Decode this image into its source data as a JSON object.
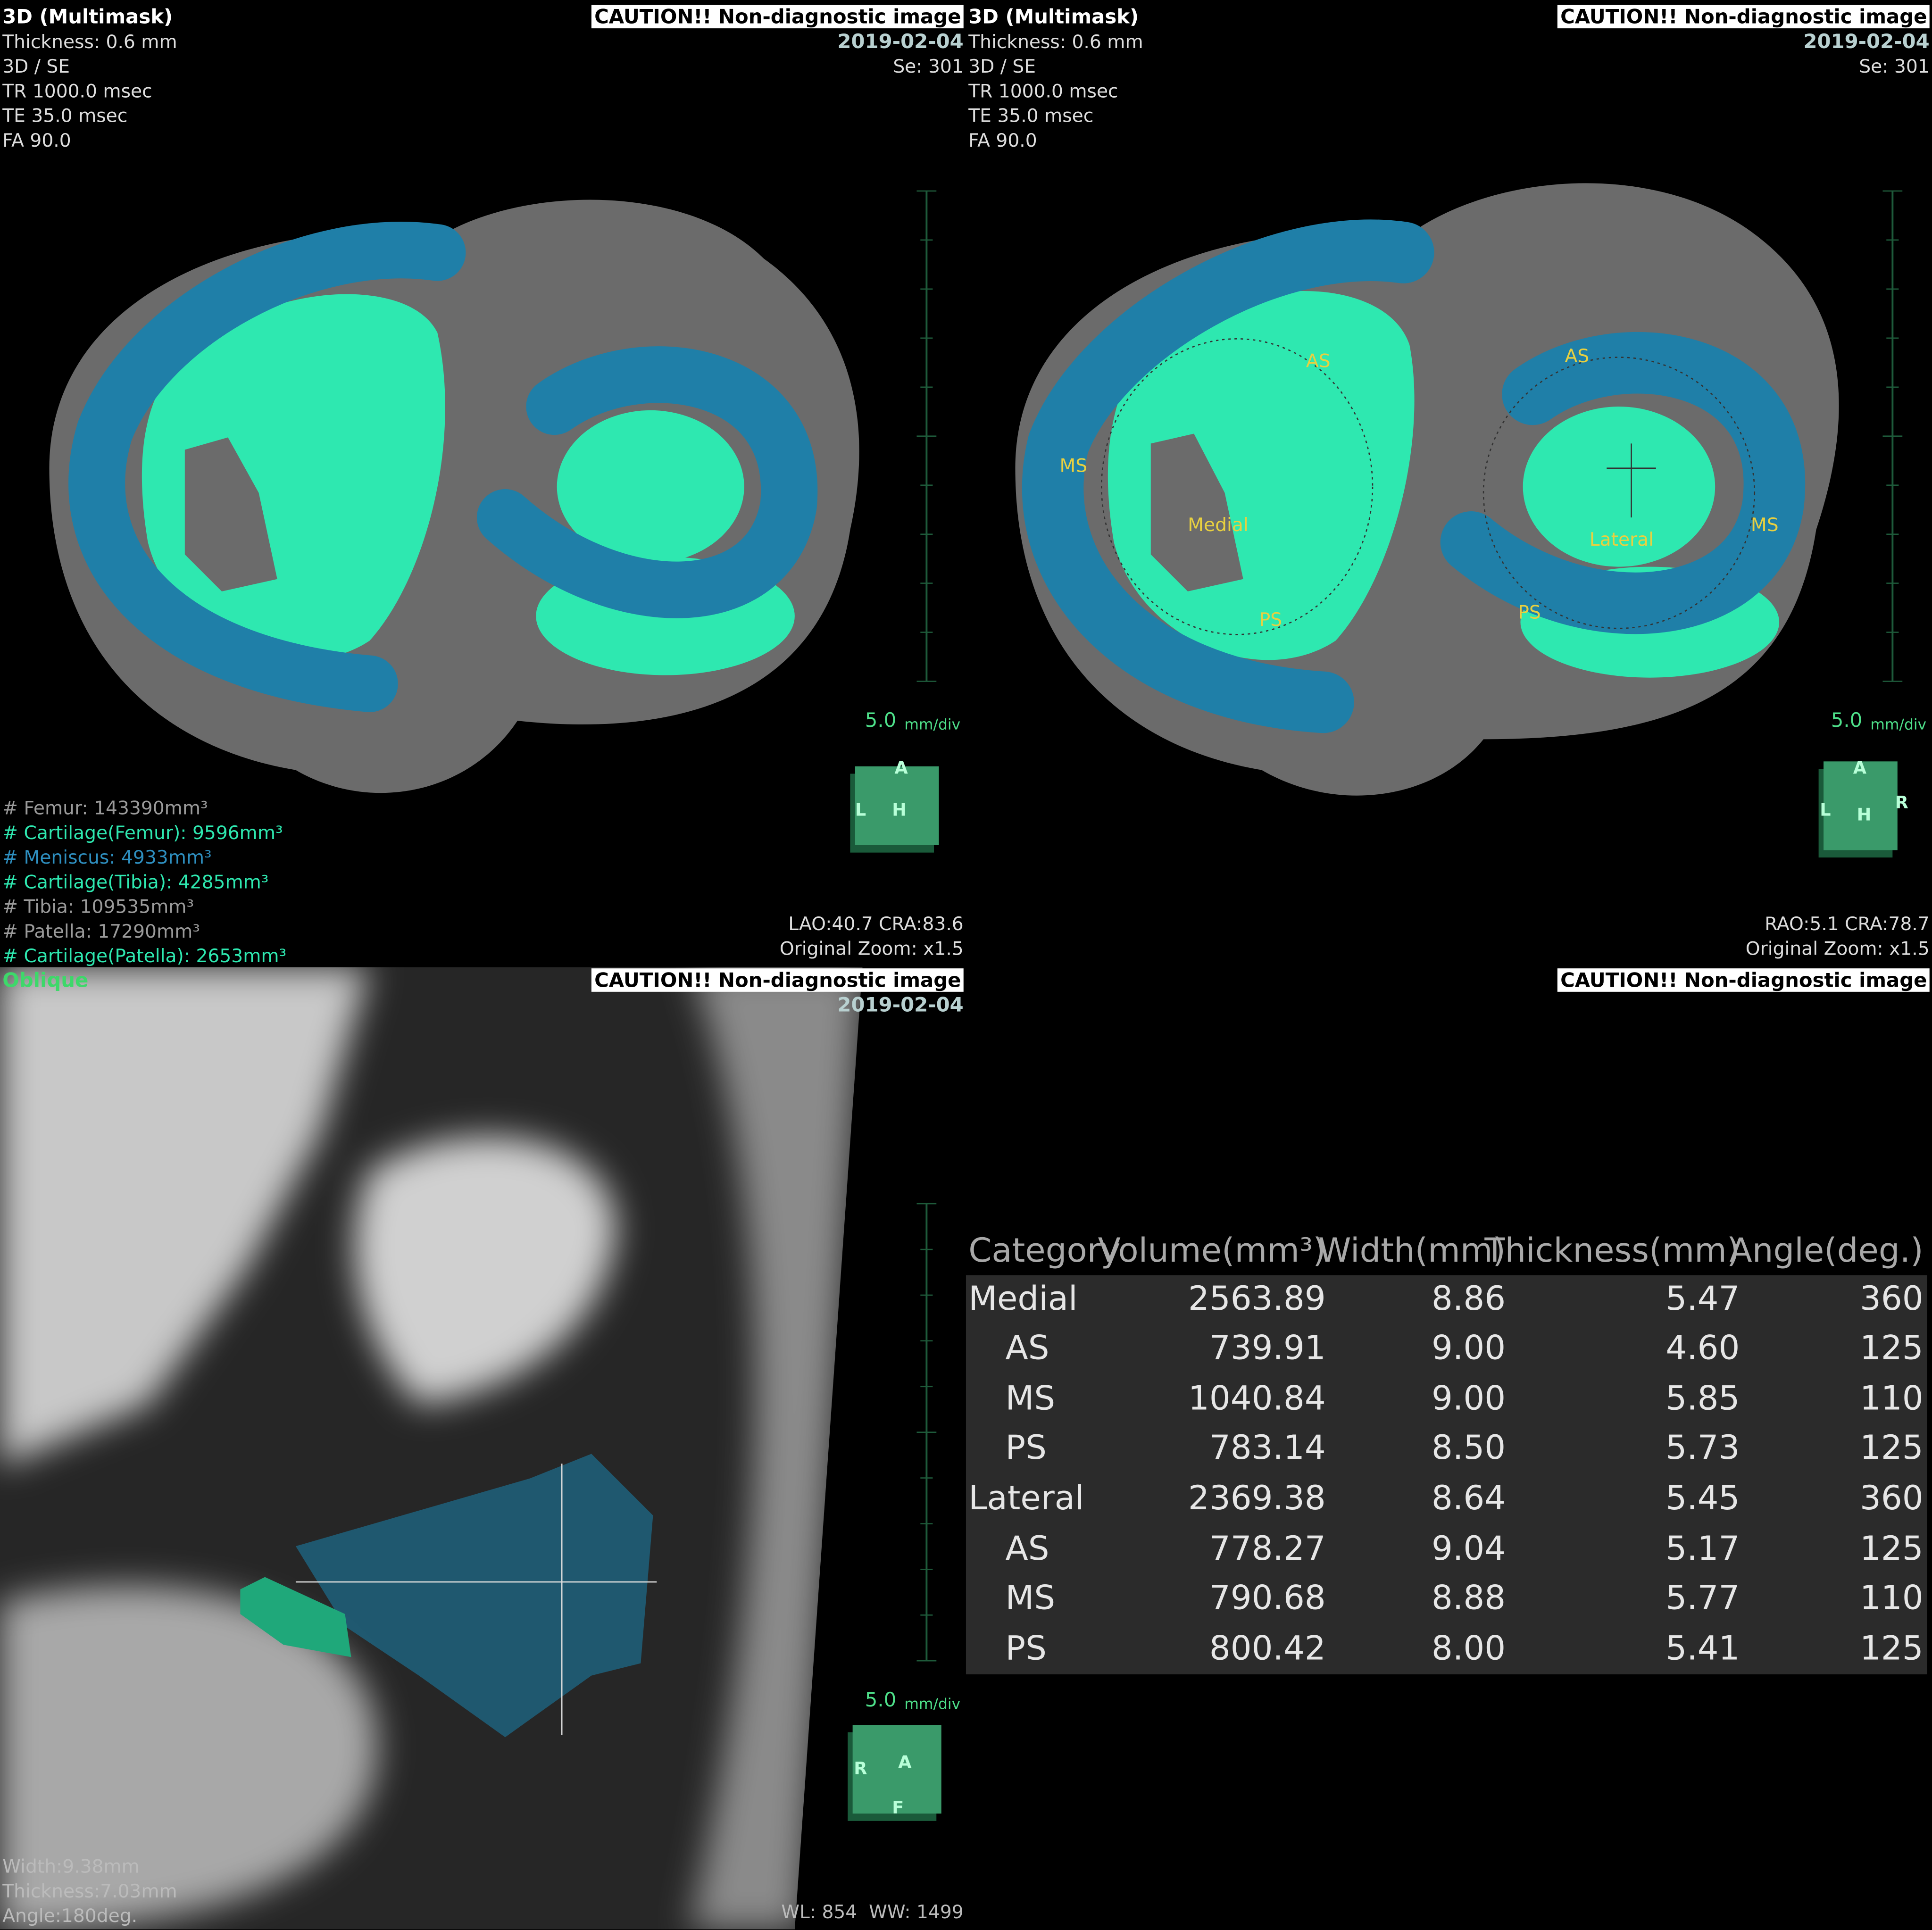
{
  "viewports": [
    {
      "title": "3D (Multimask)",
      "info": [
        "Thickness: 0.6 mm",
        "3D / SE",
        "TR 1000.0 msec",
        "TE 35.0 msec",
        "FA 90.0"
      ],
      "caution": "CAUTION!! Non-diagnostic image",
      "date": "2019-02-04",
      "series": "Se: 301",
      "scale_value": "5.0",
      "scale_unit": "mm/div",
      "orientation": [
        "A",
        "L",
        "H"
      ],
      "view": "LAO:40.7 CRA:83.6",
      "zoom": "Original Zoom: x1.5",
      "legend": [
        "# Femur: 143390mm³",
        "# Cartilage(Femur): 9596mm³",
        "# Meniscus: 4933mm³",
        "# Cartilage(Tibia): 4285mm³",
        "# Tibia: 109535mm³",
        "# Patella: 17290mm³",
        "# Cartilage(Patella): 2653mm³"
      ]
    },
    {
      "title": "3D (Multimask)",
      "info": [
        "Thickness: 0.6 mm",
        "3D / SE",
        "TR 1000.0 msec",
        "TE 35.0 msec",
        "FA 90.0"
      ],
      "caution": "CAUTION!! Non-diagnostic image",
      "date": "2019-02-04",
      "series": "Se: 301",
      "scale_value": "5.0",
      "scale_unit": "mm/div",
      "orientation": [
        "A",
        "L",
        "H",
        "R"
      ],
      "view": "RAO:5.1 CRA:78.7",
      "zoom": "Original Zoom: x1.5",
      "labels": [
        "AS",
        "MS",
        "Medial",
        "PS",
        "AS",
        "Lateral",
        "MS",
        "PS"
      ]
    },
    {
      "title": "Oblique",
      "caution": "CAUTION!! Non-diagnostic image",
      "date": "2019-02-04",
      "scale_value": "5.0",
      "scale_unit": "mm/div",
      "orientation": [
        "R",
        "A",
        "F"
      ],
      "measurements": [
        "Width:9.38mm",
        "Thickness:7.03mm",
        "Angle:180deg."
      ],
      "window": "WL: 854  WW: 1499"
    }
  ],
  "results": {
    "caution": "CAUTION!! Non-diagnostic image",
    "table": {
      "header": [
        "Category",
        "Volume(mm³)",
        "Width(mm)",
        "Thickness(mm)",
        "Angle(deg.)"
      ],
      "rows": [
        [
          "Medial",
          "2563.89",
          "8.86",
          "5.47",
          "360"
        ],
        [
          "AS",
          "739.91",
          "9.00",
          "4.60",
          "125"
        ],
        [
          "MS",
          "1040.84",
          "9.00",
          "5.85",
          "110"
        ],
        [
          "PS",
          "783.14",
          "8.50",
          "5.73",
          "125"
        ],
        [
          "Lateral",
          "2369.38",
          "8.64",
          "5.45",
          "360"
        ],
        [
          "AS",
          "778.27",
          "9.04",
          "5.17",
          "125"
        ],
        [
          "MS",
          "790.68",
          "8.88",
          "5.77",
          "110"
        ],
        [
          "PS",
          "800.42",
          "8.00",
          "5.41",
          "125"
        ]
      ]
    }
  }
}
